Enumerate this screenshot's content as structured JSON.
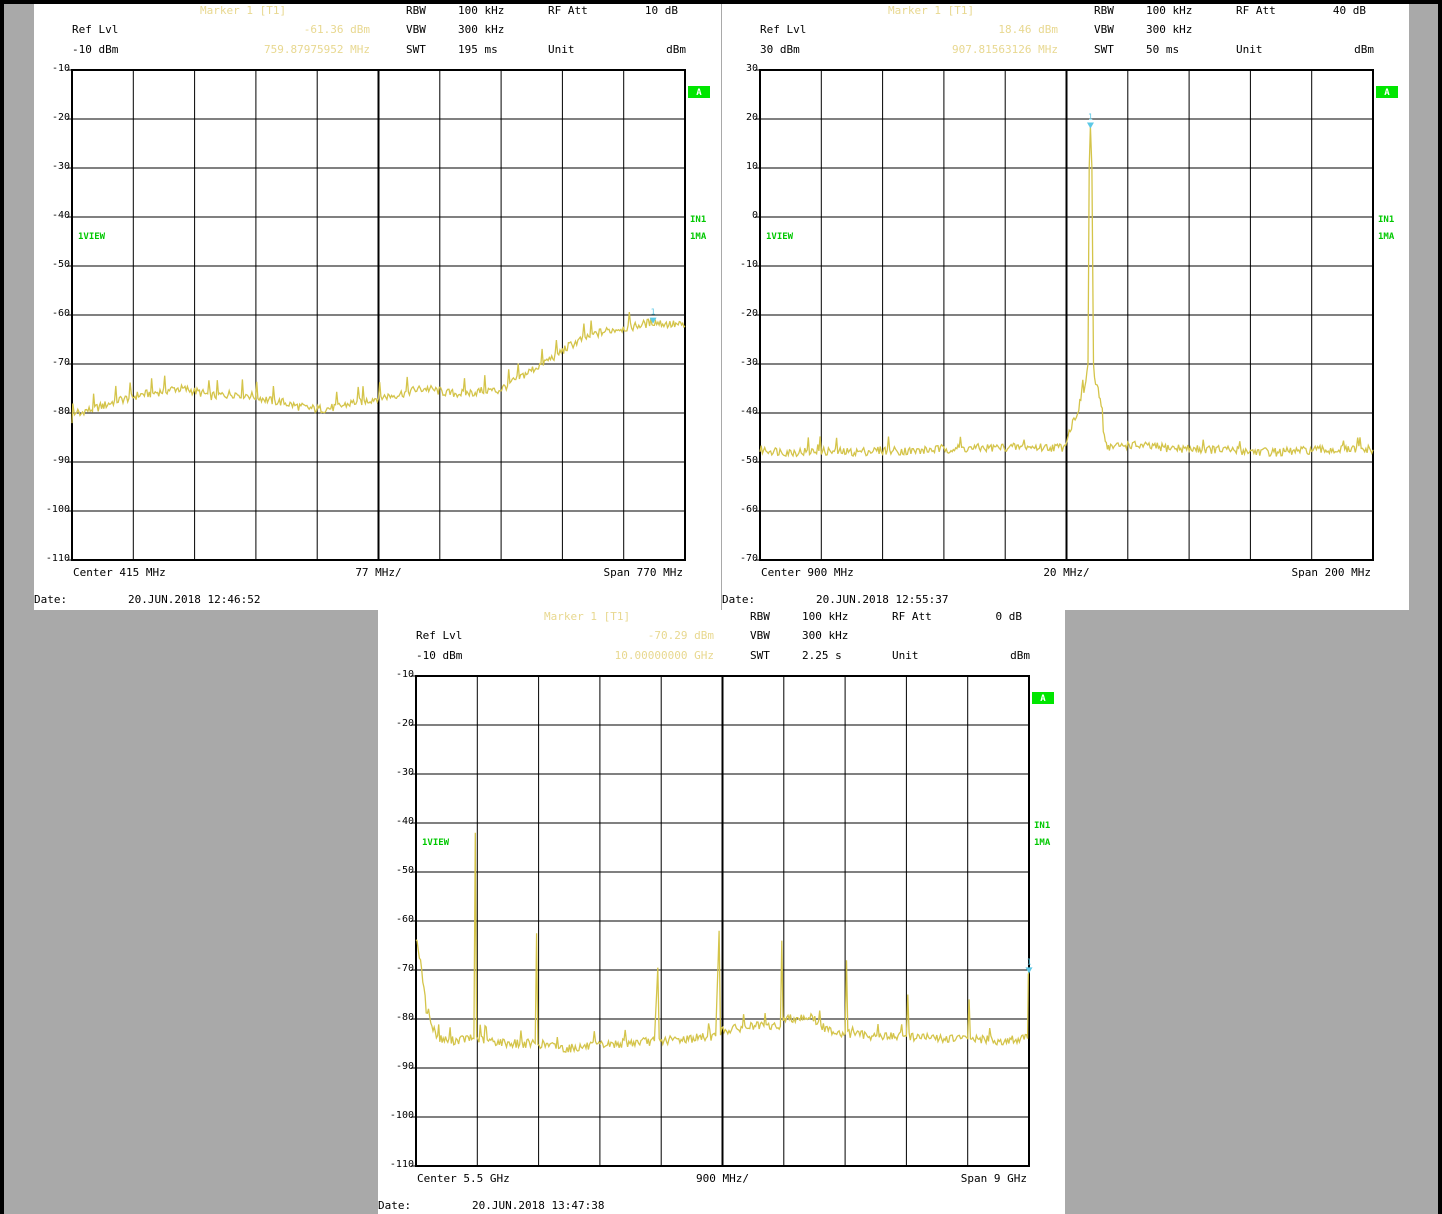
{
  "colors": {
    "trace": "#d4c44a",
    "marker_text": "#e8d890",
    "marker_symbol": "#5cc8e6",
    "grid": "#000000",
    "label_green": "#00c800",
    "badge_green": "#00e600",
    "text": "#000000",
    "panel_bg": "#ffffff",
    "page_bg": "#a9a9a9"
  },
  "chart_data": [
    {
      "type": "line",
      "title": "",
      "header": {
        "marker_label": "Marker 1 [T1]",
        "marker_level": "-61.36 dBm",
        "marker_freq": "759.87975952 MHz",
        "ref_label": "Ref Lvl",
        "ref_value": "-10 dBm",
        "rbw_label": "RBW",
        "rbw_value": "100 kHz",
        "vbw_label": "VBW",
        "vbw_value": "300 kHz",
        "swt_label": "SWT",
        "swt_value": "195 ms",
        "att_label": "RF Att",
        "att_value": "10 dB",
        "unit_label": "Unit",
        "unit_value": "dBm"
      },
      "footer": {
        "center": "Center 415 MHz",
        "div": "77 MHz/",
        "span": "Span 770 MHz",
        "date_label": "Date:",
        "date": "20.JUN.2018  12:46:52"
      },
      "side_labels": {
        "view": "1VIEW",
        "in1": "IN1",
        "ma": "1MA",
        "badge": "A"
      },
      "x_unit": "MHz",
      "xlim": [
        30,
        800
      ],
      "ylim": [
        -110,
        -10
      ],
      "y_ticks": [
        "-10",
        "-20",
        "-30",
        "-40",
        "-50",
        "-60",
        "-70",
        "-80",
        "-90",
        "-100",
        "-110"
      ],
      "marker": {
        "x": 759.88,
        "y": -61.36,
        "label": "1"
      },
      "trace_points": [
        [
          30,
          -81.5
        ],
        [
          31,
          -78.5
        ],
        [
          33,
          -80.5
        ],
        [
          36,
          -79.5
        ],
        [
          40,
          -80.5
        ],
        [
          45,
          -79.5
        ],
        [
          50,
          -79.5
        ],
        [
          60,
          -79
        ],
        [
          70,
          -78.5
        ],
        [
          85,
          -77.5
        ],
        [
          100,
          -77
        ],
        [
          115,
          -76.3
        ],
        [
          130,
          -76
        ],
        [
          145,
          -75.5
        ],
        [
          160,
          -75
        ],
        [
          175,
          -75.2
        ],
        [
          190,
          -75.8
        ],
        [
          205,
          -76.5
        ],
        [
          220,
          -76.3
        ],
        [
          235,
          -76
        ],
        [
          250,
          -76.3
        ],
        [
          265,
          -76.8
        ],
        [
          280,
          -77.5
        ],
        [
          295,
          -77.8
        ],
        [
          310,
          -78.5
        ],
        [
          325,
          -79
        ],
        [
          340,
          -79.2
        ],
        [
          355,
          -79
        ],
        [
          370,
          -78.5
        ],
        [
          385,
          -77.8
        ],
        [
          400,
          -77.5
        ],
        [
          415,
          -76.8
        ],
        [
          430,
          -76.5
        ],
        [
          445,
          -76
        ],
        [
          460,
          -75.3
        ],
        [
          475,
          -75
        ],
        [
          490,
          -75.5
        ],
        [
          505,
          -76
        ],
        [
          520,
          -76
        ],
        [
          535,
          -75.8
        ],
        [
          550,
          -75.3
        ],
        [
          565,
          -75.5
        ],
        [
          580,
          -74
        ],
        [
          595,
          -72.5
        ],
        [
          610,
          -71
        ],
        [
          625,
          -69.5
        ],
        [
          640,
          -68
        ],
        [
          655,
          -66.3
        ],
        [
          670,
          -65
        ],
        [
          685,
          -64
        ],
        [
          700,
          -63.3
        ],
        [
          715,
          -62.8
        ],
        [
          730,
          -62.5
        ],
        [
          745,
          -62
        ],
        [
          760,
          -61.4
        ],
        [
          775,
          -61.8
        ],
        [
          790,
          -62
        ],
        [
          800,
          -62.2
        ]
      ]
    },
    {
      "type": "line",
      "title": "",
      "header": {
        "marker_label": "Marker 1 [T1]",
        "marker_level": "18.46 dBm",
        "marker_freq": "907.81563126 MHz",
        "ref_label": "Ref Lvl",
        "ref_value": "30 dBm",
        "rbw_label": "RBW",
        "rbw_value": "100 kHz",
        "vbw_label": "VBW",
        "vbw_value": "300 kHz",
        "swt_label": "SWT",
        "swt_value": "50 ms",
        "att_label": "RF Att",
        "att_value": "40 dB",
        "unit_label": "Unit",
        "unit_value": "dBm"
      },
      "footer": {
        "center": "Center 900 MHz",
        "div": "20 MHz/",
        "span": "Span 200 MHz",
        "date_label": "Date:",
        "date": "20.JUN.2018  12:55:37"
      },
      "side_labels": {
        "view": "1VIEW",
        "in1": "IN1",
        "ma": "1MA",
        "badge": "A"
      },
      "x_unit": "MHz",
      "xlim": [
        800,
        1000
      ],
      "ylim": [
        -70,
        30
      ],
      "y_ticks": [
        "30",
        "20",
        "10",
        "0",
        "-10",
        "-20",
        "-30",
        "-40",
        "-50",
        "-60",
        "-70"
      ],
      "marker": {
        "x": 907.82,
        "y": 18.46,
        "label": "1"
      },
      "trace_points": [
        [
          800,
          -47.5
        ],
        [
          810,
          -48
        ],
        [
          820,
          -47.8
        ],
        [
          830,
          -48
        ],
        [
          840,
          -47.6
        ],
        [
          850,
          -47.8
        ],
        [
          860,
          -47.3
        ],
        [
          870,
          -47.2
        ],
        [
          880,
          -47
        ],
        [
          890,
          -47
        ],
        [
          899,
          -47
        ],
        [
          902,
          -42
        ],
        [
          904,
          -39
        ],
        [
          905,
          -36
        ],
        [
          906,
          -35
        ],
        [
          907,
          -30
        ],
        [
          907.4,
          10
        ],
        [
          907.8,
          18.5
        ],
        [
          908.3,
          10
        ],
        [
          908.8,
          -30
        ],
        [
          909.5,
          -35
        ],
        [
          910,
          -35
        ],
        [
          911,
          -37
        ],
        [
          912,
          -43
        ],
        [
          913,
          -46.5
        ],
        [
          914,
          -47
        ],
        [
          920,
          -46.5
        ],
        [
          930,
          -47
        ],
        [
          940,
          -47.3
        ],
        [
          950,
          -47.5
        ],
        [
          960,
          -47.8
        ],
        [
          970,
          -48
        ],
        [
          980,
          -47.6
        ],
        [
          990,
          -47.5
        ],
        [
          1000,
          -47.5
        ]
      ]
    },
    {
      "type": "line",
      "title": "",
      "header": {
        "marker_label": "Marker 1 [T1]",
        "marker_level": "-70.29 dBm",
        "marker_freq": "10.00000000 GHz",
        "ref_label": "Ref Lvl",
        "ref_value": "-10 dBm",
        "rbw_label": "RBW",
        "rbw_value": "100 kHz",
        "vbw_label": "VBW",
        "vbw_value": "300 kHz",
        "swt_label": "SWT",
        "swt_value": "2.25 s",
        "att_label": "RF Att",
        "att_value": "0 dB",
        "unit_label": "Unit",
        "unit_value": "dBm"
      },
      "footer": {
        "center": "Center 5.5 GHz",
        "div": "900 MHz/",
        "span": "Span 9 GHz",
        "date_label": "Date:",
        "date": "20.JUN.2018  13:47:38"
      },
      "side_labels": {
        "view": "1VIEW",
        "in1": "IN1",
        "ma": "1MA",
        "badge": "A"
      },
      "x_unit": "GHz",
      "xlim": [
        1,
        10
      ],
      "ylim": [
        -110,
        -10
      ],
      "y_ticks": [
        "-10",
        "-20",
        "-30",
        "-40",
        "-50",
        "-60",
        "-70",
        "-80",
        "-90",
        "-100",
        "-110"
      ],
      "marker": {
        "x": 10.0,
        "y": -70.29,
        "label": "1"
      },
      "trace_points": [
        [
          1.0,
          -63
        ],
        [
          1.05,
          -67
        ],
        [
          1.1,
          -72
        ],
        [
          1.15,
          -78
        ],
        [
          1.2,
          -80
        ],
        [
          1.25,
          -82
        ],
        [
          1.35,
          -84
        ],
        [
          1.5,
          -84.5
        ],
        [
          1.75,
          -84
        ],
        [
          1.85,
          -84
        ],
        [
          1.87,
          -42
        ],
        [
          1.89,
          -84
        ],
        [
          2.1,
          -84.5
        ],
        [
          2.4,
          -85
        ],
        [
          2.75,
          -85
        ],
        [
          2.77,
          -62.5
        ],
        [
          2.79,
          -85
        ],
        [
          3.2,
          -86
        ],
        [
          3.6,
          -85.5
        ],
        [
          4.0,
          -85
        ],
        [
          4.5,
          -84.5
        ],
        [
          4.55,
          -69.5
        ],
        [
          4.57,
          -84.5
        ],
        [
          5.0,
          -84
        ],
        [
          5.4,
          -83.5
        ],
        [
          5.45,
          -62
        ],
        [
          5.47,
          -82.5
        ],
        [
          5.9,
          -81.5
        ],
        [
          6.35,
          -81.5
        ],
        [
          6.37,
          -64
        ],
        [
          6.39,
          -80
        ],
        [
          6.8,
          -79.5
        ],
        [
          7.0,
          -82
        ],
        [
          7.3,
          -83
        ],
        [
          7.32,
          -68
        ],
        [
          7.34,
          -83
        ],
        [
          7.8,
          -83.5
        ],
        [
          8.2,
          -83.5
        ],
        [
          8.22,
          -75
        ],
        [
          8.24,
          -83.5
        ],
        [
          8.7,
          -84
        ],
        [
          9.1,
          -84
        ],
        [
          9.12,
          -76
        ],
        [
          9.14,
          -84
        ],
        [
          9.6,
          -84.5
        ],
        [
          9.98,
          -84
        ],
        [
          9.99,
          -70.3
        ],
        [
          10.0,
          -70.3
        ]
      ]
    }
  ]
}
